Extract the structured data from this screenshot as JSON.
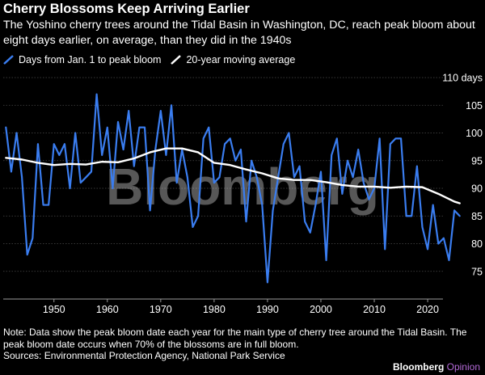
{
  "title": "Cherry Blossoms Keep Arriving Earlier",
  "subtitle": "The Yoshino cherry trees around the Tidal Basin in Washington, DC, reach peak bloom about eight days earlier, on average, than they did in the 1940s",
  "legend": {
    "series1": "Days from Jan. 1 to peak bloom",
    "series2": "20-year moving average"
  },
  "watermark": "Bloomberg",
  "note": "Note: Data show the peak bloom date each year for the main type of cherry tree around the Tidal Basin. The peak bloom date occurs when 70% of the blossoms are in full bloom.",
  "sources": "Sources: Environmental Protection Agency, National Park Service",
  "brand": {
    "name": "Bloomberg",
    "suffix": "Opinion"
  },
  "colors": {
    "series1": "#3a7df0",
    "series2": "#ffffff",
    "background": "#000000",
    "grid": "#5a5a5a",
    "brand_accent": "#b46ad8"
  },
  "chart_data": {
    "type": "line",
    "x_ticks": [
      1950,
      1960,
      1970,
      1980,
      1990,
      2000,
      2010,
      2020
    ],
    "y_ticks": [
      75,
      80,
      85,
      90,
      95,
      100,
      105,
      110
    ],
    "y_tick_labels": [
      "75",
      "80",
      "85",
      "90",
      "95",
      "100",
      "105",
      "110 days"
    ],
    "xlim": [
      1940.5,
      2026.5
    ],
    "ylim": [
      70,
      110
    ],
    "grid": "horizontal",
    "series": [
      {
        "name": "Days from Jan. 1 to peak bloom",
        "x": [
          1941,
          1942,
          1943,
          1944,
          1945,
          1946,
          1947,
          1948,
          1949,
          1950,
          1951,
          1952,
          1953,
          1954,
          1955,
          1956,
          1957,
          1958,
          1959,
          1960,
          1961,
          1962,
          1963,
          1964,
          1965,
          1966,
          1967,
          1968,
          1969,
          1970,
          1971,
          1972,
          1973,
          1974,
          1975,
          1976,
          1977,
          1978,
          1979,
          1980,
          1981,
          1982,
          1983,
          1984,
          1985,
          1986,
          1987,
          1988,
          1989,
          1990,
          1991,
          1992,
          1993,
          1994,
          1995,
          1996,
          1997,
          1998,
          1999,
          2000,
          2001,
          2002,
          2003,
          2004,
          2005,
          2006,
          2007,
          2008,
          2009,
          2010,
          2011,
          2012,
          2013,
          2014,
          2015,
          2016,
          2017,
          2018,
          2019,
          2020,
          2021,
          2022,
          2023,
          2024,
          2025,
          2026
        ],
        "y": [
          101,
          93,
          100,
          92,
          78,
          81,
          98,
          87,
          87,
          98,
          96,
          98,
          90,
          100,
          91,
          92,
          93,
          107,
          96,
          101,
          90,
          102,
          97,
          104,
          94,
          101,
          101,
          86,
          97,
          104,
          96,
          105,
          91,
          97,
          92,
          83,
          85,
          99,
          101,
          91,
          92,
          98,
          99,
          95,
          97,
          84,
          95,
          92,
          87,
          73,
          86,
          92,
          98,
          100,
          92,
          94,
          84,
          82,
          87,
          93,
          77,
          96,
          99,
          89,
          95,
          92,
          97,
          91,
          88,
          90,
          99,
          79,
          98,
          99,
          99,
          85,
          85,
          94,
          83,
          79,
          87,
          80,
          81,
          77,
          86,
          85
        ],
        "color": "#3a7df0"
      },
      {
        "name": "20-year moving average",
        "x": [
          1941,
          1944,
          1947,
          1950,
          1953,
          1956,
          1959,
          1962,
          1965,
          1968,
          1971,
          1974,
          1977,
          1980,
          1983,
          1986,
          1989,
          1992,
          1995,
          1998,
          2001,
          2004,
          2007,
          2010,
          2013,
          2016,
          2019,
          2022,
          2025,
          2026
        ],
        "y": [
          95.5,
          95.2,
          94.6,
          94.2,
          94.4,
          94.3,
          94.8,
          94.7,
          95.4,
          96.5,
          97.2,
          97.2,
          96.5,
          94.6,
          94.2,
          93.4,
          92.7,
          91.8,
          91.5,
          91.5,
          91.1,
          90.6,
          90.3,
          90.3,
          90.1,
          90.3,
          90.2,
          89.0,
          87.6,
          87.3
        ],
        "color": "#ffffff"
      }
    ]
  }
}
